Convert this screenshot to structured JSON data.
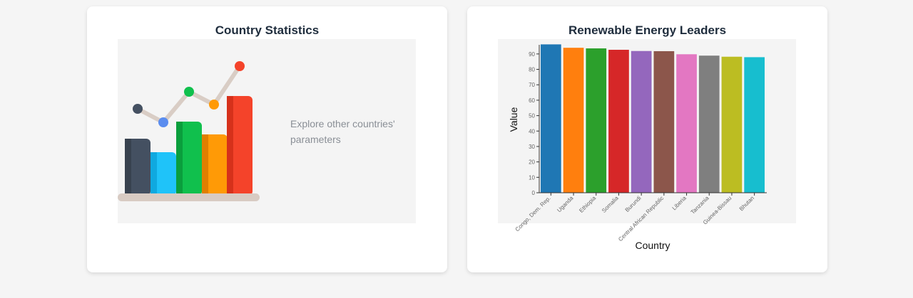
{
  "left_card": {
    "title": "Country Statistics",
    "text": "Explore other countries' parameters",
    "illustration": {
      "icon": "bar-line-chart-illustration",
      "colors": [
        "#445061",
        "#1fc3f9",
        "#10c04d",
        "#ff9a06",
        "#f4432a"
      ]
    }
  },
  "right_card": {
    "title": "Renewable Energy Leaders"
  },
  "chart_data": {
    "type": "bar",
    "categories": [
      "Congo, Dem. Rep.",
      "Uganda",
      "Ethiopia",
      "Somalia",
      "Burundi",
      "Central African Republic",
      "Liberia",
      "Tanzania",
      "Guinea-Bissau",
      "Bhutan"
    ],
    "values": [
      96.2,
      94.0,
      93.6,
      92.7,
      91.9,
      91.8,
      89.8,
      88.9,
      88.2,
      87.9
    ],
    "colors": [
      "#1f77b4",
      "#ff7f0e",
      "#2ca02c",
      "#d62728",
      "#9467bd",
      "#8c564b",
      "#e377c2",
      "#7f7f7f",
      "#bcbd22",
      "#17becf"
    ],
    "xlabel": "Country",
    "ylabel": "Value",
    "ylim": [
      0,
      95
    ],
    "yticks": [
      0,
      10,
      20,
      30,
      40,
      50,
      60,
      70,
      80,
      90
    ],
    "grid": false,
    "legend": "none"
  }
}
